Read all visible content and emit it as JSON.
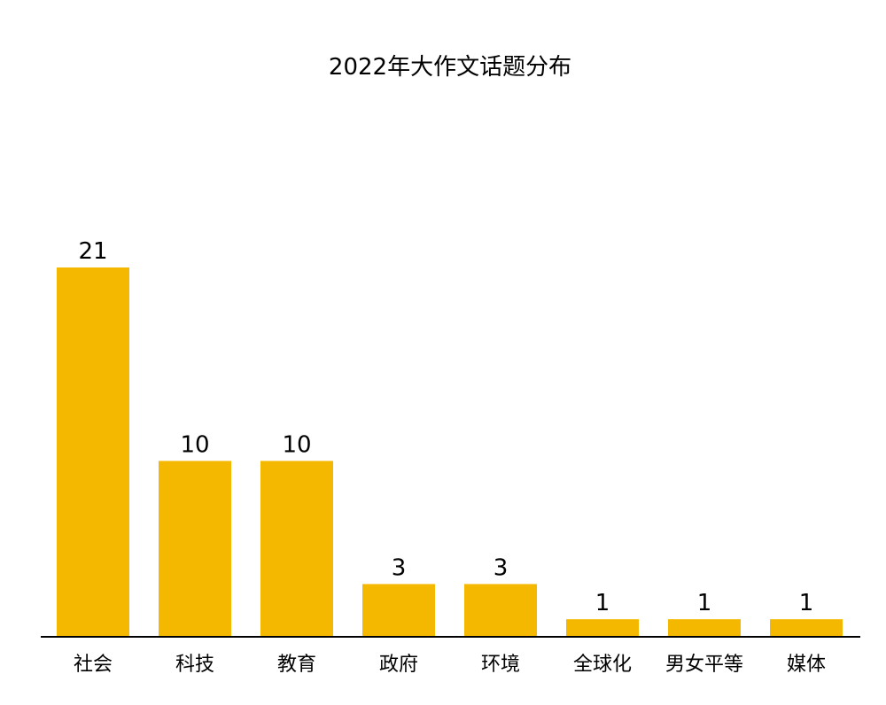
{
  "chart_data": {
    "type": "bar",
    "title": "2022年大作文话题分布",
    "xlabel": "",
    "ylabel": "",
    "categories": [
      "社会",
      "科技",
      "教育",
      "政府",
      "环境",
      "全球化",
      "男女平等",
      "媒体"
    ],
    "values": [
      21,
      10,
      10,
      3,
      3,
      1,
      1,
      1
    ],
    "ylim": [
      0,
      21
    ],
    "grid": false,
    "legend": "none",
    "bar_color": "#F5B800",
    "axis_color": "#000000",
    "data_labels": [
      "21",
      "10",
      "10",
      "3",
      "3",
      "1",
      "1",
      "1"
    ]
  }
}
